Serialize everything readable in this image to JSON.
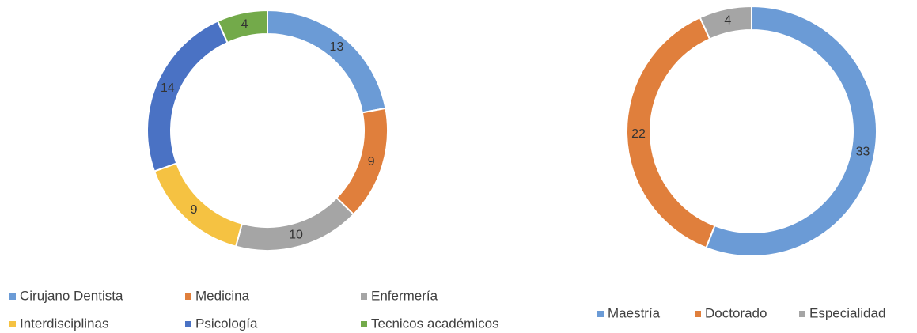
{
  "chart_data": [
    {
      "type": "donut",
      "categories": [
        "Cirujano Dentista",
        "Medicina",
        "Enfermería",
        "Interdisciplinas",
        "Psicología",
        "Tecnicos académicos"
      ],
      "values": [
        13,
        9,
        10,
        9,
        14,
        4
      ],
      "colors": [
        "#6b9bd6",
        "#e07f3c",
        "#a5a5a5",
        "#f5c242",
        "#4a72c4",
        "#73aa4a"
      ]
    },
    {
      "type": "donut",
      "categories": [
        "Maestría",
        "Doctorado",
        "Especialidad"
      ],
      "values": [
        33,
        22,
        4
      ],
      "colors": [
        "#6b9bd6",
        "#e07f3c",
        "#a5a5a5"
      ]
    }
  ]
}
